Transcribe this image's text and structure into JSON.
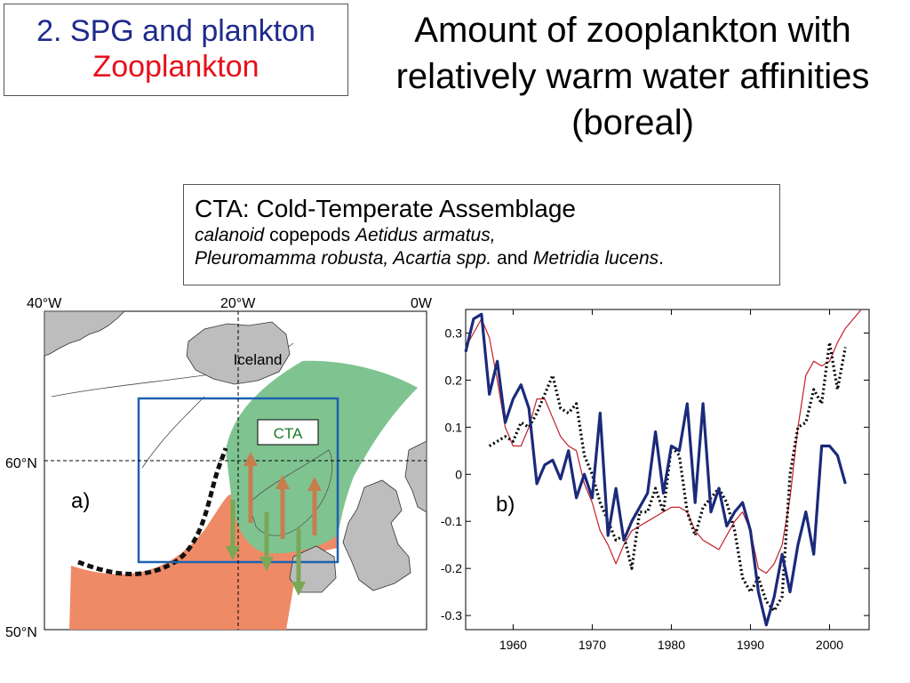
{
  "section": {
    "line1": "2. SPG and plankton",
    "line2": "Zooplankton"
  },
  "title": {
    "line1": "Amount of zooplankton with",
    "line2": "relatively warm water affinities",
    "line3": "(boreal)"
  },
  "definition": {
    "heading": "CTA: Cold-Temperate Assemblage",
    "species_line1_a": "calanoid",
    "species_line1_b": " copepods ",
    "species_line1_c": "Aetidus armatus,",
    "species_line2_a": "Pleuromamma robusta, Acartia spp.",
    "species_line2_b": " and ",
    "species_line2_c": "Metridia lucens",
    "species_line2_d": "."
  },
  "map": {
    "panel_label": "a)",
    "iceland_label": "Iceland",
    "region_label": "CTA",
    "lon_labels": [
      "40°W",
      "20°W",
      "0W"
    ],
    "lat_labels": [
      "60°N",
      "50°N"
    ],
    "colors": {
      "warm": "#ef8a67",
      "cta": "#7fc391",
      "box": "#1f62b0",
      "land": "#bdbdbd",
      "arrow_up": "#c77d4e",
      "arrow_down": "#7aa856"
    }
  },
  "chart_data": {
    "type": "line",
    "panel_label": "b)",
    "xlim": [
      1954,
      2005
    ],
    "ylim": [
      -0.33,
      0.35
    ],
    "xticks": [
      1960,
      1970,
      1980,
      1990,
      2000
    ],
    "yticks": [
      0.3,
      0.2,
      0.1,
      0,
      -0.1,
      -0.2,
      -0.3
    ],
    "grid": false,
    "series": [
      {
        "style": "thick-solid",
        "color": "#1b2a7a",
        "points": [
          [
            1954,
            0.26
          ],
          [
            1955,
            0.33
          ],
          [
            1956,
            0.34
          ],
          [
            1957,
            0.17
          ],
          [
            1958,
            0.24
          ],
          [
            1959,
            0.11
          ],
          [
            1960,
            0.16
          ],
          [
            1961,
            0.19
          ],
          [
            1962,
            0.14
          ],
          [
            1963,
            -0.02
          ],
          [
            1964,
            0.02
          ],
          [
            1965,
            0.03
          ],
          [
            1966,
            -0.01
          ],
          [
            1967,
            0.05
          ],
          [
            1968,
            -0.05
          ],
          [
            1969,
            0.0
          ],
          [
            1970,
            -0.05
          ],
          [
            1971,
            0.13
          ],
          [
            1972,
            -0.13
          ],
          [
            1973,
            -0.03
          ],
          [
            1974,
            -0.14
          ],
          [
            1975,
            -0.1
          ],
          [
            1976,
            -0.07
          ],
          [
            1977,
            -0.04
          ],
          [
            1978,
            0.09
          ],
          [
            1979,
            -0.04
          ],
          [
            1980,
            0.06
          ],
          [
            1981,
            0.05
          ],
          [
            1982,
            0.15
          ],
          [
            1983,
            -0.06
          ],
          [
            1984,
            0.15
          ],
          [
            1985,
            -0.08
          ],
          [
            1986,
            -0.03
          ],
          [
            1987,
            -0.11
          ],
          [
            1988,
            -0.08
          ],
          [
            1989,
            -0.06
          ],
          [
            1990,
            -0.12
          ],
          [
            1991,
            -0.25
          ],
          [
            1992,
            -0.32
          ],
          [
            1993,
            -0.26
          ],
          [
            1994,
            -0.17
          ],
          [
            1995,
            -0.25
          ],
          [
            1996,
            -0.15
          ],
          [
            1997,
            -0.08
          ],
          [
            1998,
            -0.17
          ],
          [
            1999,
            0.06
          ],
          [
            2000,
            0.06
          ],
          [
            2001,
            0.04
          ],
          [
            2002,
            -0.02
          ]
        ]
      },
      {
        "style": "dotted",
        "color": "#000000",
        "points": [
          [
            1957,
            0.06
          ],
          [
            1958,
            0.07
          ],
          [
            1959,
            0.08
          ],
          [
            1960,
            0.07
          ],
          [
            1961,
            0.11
          ],
          [
            1962,
            0.1
          ],
          [
            1963,
            0.13
          ],
          [
            1964,
            0.17
          ],
          [
            1965,
            0.21
          ],
          [
            1966,
            0.14
          ],
          [
            1967,
            0.13
          ],
          [
            1968,
            0.15
          ],
          [
            1969,
            0.04
          ],
          [
            1970,
            0.0
          ],
          [
            1971,
            -0.06
          ],
          [
            1972,
            -0.1
          ],
          [
            1973,
            -0.14
          ],
          [
            1974,
            -0.13
          ],
          [
            1975,
            -0.2
          ],
          [
            1976,
            -0.08
          ],
          [
            1977,
            -0.08
          ],
          [
            1978,
            -0.03
          ],
          [
            1979,
            -0.08
          ],
          [
            1980,
            0.06
          ],
          [
            1981,
            0.04
          ],
          [
            1982,
            -0.08
          ],
          [
            1983,
            -0.13
          ],
          [
            1984,
            -0.07
          ],
          [
            1985,
            -0.05
          ],
          [
            1986,
            -0.03
          ],
          [
            1987,
            -0.06
          ],
          [
            1988,
            -0.12
          ],
          [
            1989,
            -0.22
          ],
          [
            1990,
            -0.25
          ],
          [
            1991,
            -0.22
          ],
          [
            1992,
            -0.27
          ],
          [
            1993,
            -0.29
          ],
          [
            1994,
            -0.26
          ],
          [
            1995,
            0.0
          ],
          [
            1996,
            0.1
          ],
          [
            1997,
            0.11
          ],
          [
            1998,
            0.18
          ],
          [
            1999,
            0.15
          ],
          [
            2000,
            0.28
          ],
          [
            2001,
            0.18
          ],
          [
            2002,
            0.27
          ]
        ]
      },
      {
        "style": "thin-solid",
        "color": "#c2202a",
        "points": [
          [
            1954,
            0.27
          ],
          [
            1955,
            0.3
          ],
          [
            1956,
            0.33
          ],
          [
            1957,
            0.29
          ],
          [
            1958,
            0.2
          ],
          [
            1959,
            0.1
          ],
          [
            1960,
            0.06
          ],
          [
            1961,
            0.06
          ],
          [
            1962,
            0.1
          ],
          [
            1963,
            0.16
          ],
          [
            1964,
            0.16
          ],
          [
            1965,
            0.12
          ],
          [
            1966,
            0.08
          ],
          [
            1967,
            0.06
          ],
          [
            1968,
            0.05
          ],
          [
            1969,
            -0.02
          ],
          [
            1970,
            -0.06
          ],
          [
            1971,
            -0.12
          ],
          [
            1972,
            -0.15
          ],
          [
            1973,
            -0.19
          ],
          [
            1974,
            -0.15
          ],
          [
            1975,
            -0.12
          ],
          [
            1976,
            -0.11
          ],
          [
            1977,
            -0.1
          ],
          [
            1978,
            -0.09
          ],
          [
            1979,
            -0.08
          ],
          [
            1980,
            -0.07
          ],
          [
            1981,
            -0.07
          ],
          [
            1982,
            -0.08
          ],
          [
            1983,
            -0.12
          ],
          [
            1984,
            -0.14
          ],
          [
            1985,
            -0.15
          ],
          [
            1986,
            -0.16
          ],
          [
            1987,
            -0.13
          ],
          [
            1988,
            -0.1
          ],
          [
            1989,
            -0.08
          ],
          [
            1990,
            -0.12
          ],
          [
            1991,
            -0.2
          ],
          [
            1992,
            -0.21
          ],
          [
            1993,
            -0.19
          ],
          [
            1994,
            -0.15
          ],
          [
            1995,
            -0.05
          ],
          [
            1996,
            0.1
          ],
          [
            1997,
            0.21
          ],
          [
            1998,
            0.24
          ],
          [
            1999,
            0.23
          ],
          [
            2000,
            0.24
          ],
          [
            2001,
            0.28
          ],
          [
            2002,
            0.31
          ],
          [
            2003,
            0.33
          ],
          [
            2004,
            0.35
          ]
        ]
      }
    ]
  }
}
